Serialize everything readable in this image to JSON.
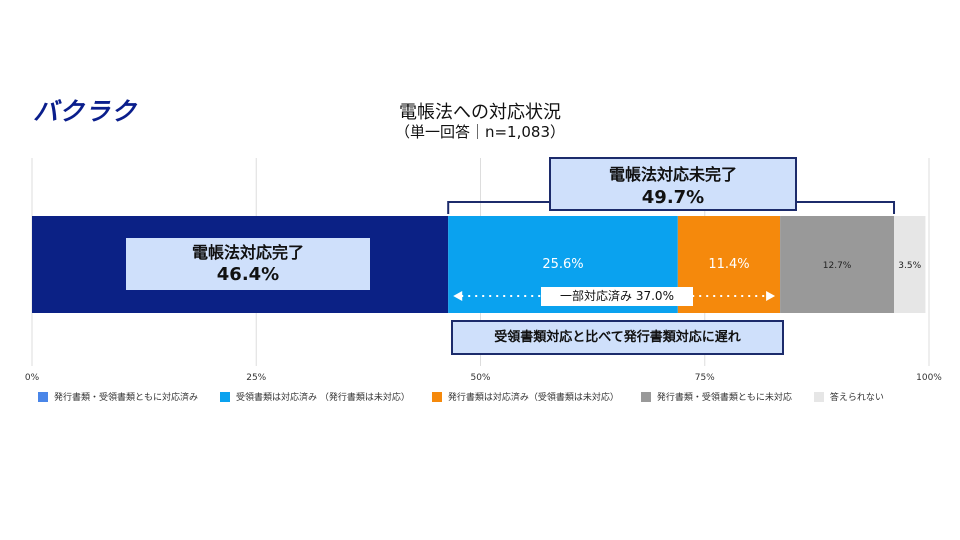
{
  "logo": "バクラク",
  "title": "電帳法への対応状況",
  "subtitle": "（単一回答｜n=1,083）",
  "annotations": {
    "complete_l1": "電帳法対応完了",
    "complete_l2": "46.4%",
    "incomplete_l1": "電帳法対応未完了",
    "incomplete_l2": "49.7%",
    "partial": "一部対応済み 37.0%",
    "lag": "受領書類対応と比べて発行書類対応に遅れ"
  },
  "chart_data": {
    "type": "bar",
    "orientation": "horizontal-stacked-100",
    "xlim": [
      0,
      100
    ],
    "ticks": [
      "0%",
      "25%",
      "50%",
      "75%",
      "100%"
    ],
    "series": [
      {
        "name": "発行書類・受領書類ともに対応済み",
        "value": 46.4,
        "label": "",
        "color": "#0b2185"
      },
      {
        "name": "受領書類は対応済み （発行書類は未対応）",
        "value": 25.6,
        "label": "25.6%",
        "color": "#0aa2ef"
      },
      {
        "name": "発行書類は対応済み（受領書類は未対応）",
        "value": 11.4,
        "label": "11.4%",
        "color": "#f5890c"
      },
      {
        "name": "発行書類・受領書類ともに未対応",
        "value": 12.7,
        "label": "12.7%",
        "color": "#999999"
      },
      {
        "name": "答えられない",
        "value": 3.5,
        "label": "3.5%",
        "color": "#e6e6e6"
      }
    ],
    "legend_swatch_colors": [
      "#4a86e8",
      "#0aa2ef",
      "#f5890c",
      "#999999",
      "#e6e6e6"
    ],
    "legend_position": "bottom"
  }
}
